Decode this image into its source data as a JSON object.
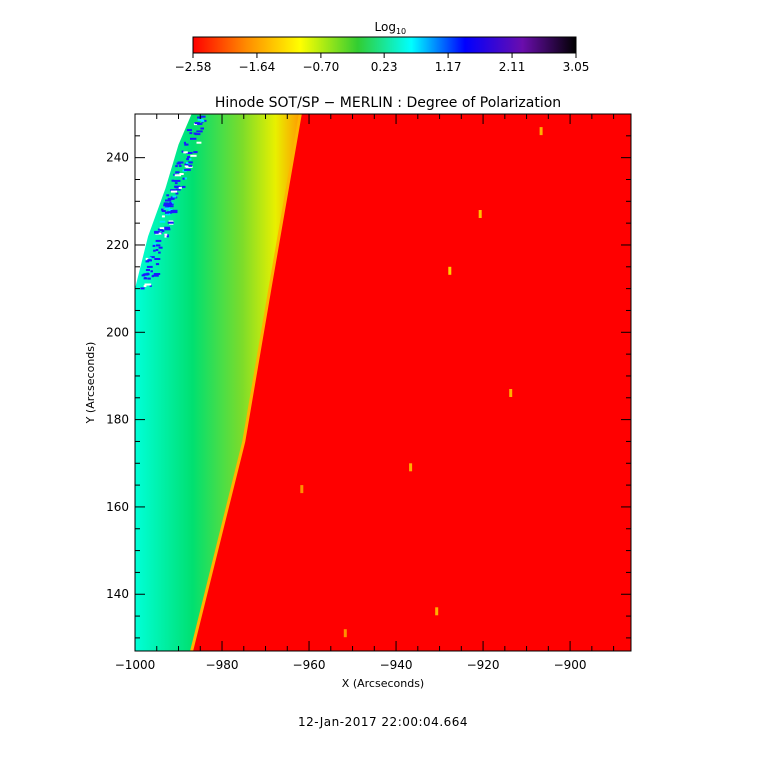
{
  "chart_data": {
    "type": "heatmap",
    "title": "Hinode SOT/SP − MERLIN : Degree of Polarization",
    "xlabel": "X (Arcseconds)",
    "ylabel": "Y (Arcseconds)",
    "xlim": [
      -1000,
      -886
    ],
    "ylim": [
      127,
      250
    ],
    "x_ticks": [
      -1000,
      -980,
      -960,
      -940,
      -920,
      -900
    ],
    "x_tick_labels": [
      "−1000",
      "−980",
      "−960",
      "−940",
      "−920",
      "−900"
    ],
    "y_ticks": [
      140,
      160,
      180,
      200,
      220,
      240
    ],
    "y_tick_labels": [
      "140",
      "160",
      "180",
      "200",
      "220",
      "240"
    ],
    "colorbar": {
      "label": "Log",
      "label_subscript": "10",
      "range": [
        -2.58,
        3.05
      ],
      "ticks": [
        -2.58,
        -1.64,
        -0.7,
        0.23,
        1.17,
        2.11,
        3.05
      ],
      "tick_labels": [
        "−2.58",
        "−1.64",
        "−0.70",
        "0.23",
        "1.17",
        "2.11",
        "3.05"
      ],
      "colors": [
        "#ff0000",
        "#ff8c00",
        "#ffff00",
        "#32cd32",
        "#00ffff",
        "#0000ff",
        "#6a0dad",
        "#000000"
      ]
    },
    "limb_edge": {
      "description_values": [
        [
          -987,
          127
        ],
        [
          -975,
          175
        ],
        [
          -962,
          250
        ]
      ],
      "x_values": [
        -987,
        -980,
        -975,
        -969,
        -962
      ],
      "y_values": [
        127,
        155,
        175,
        210,
        250
      ]
    },
    "disk_value": -2.58,
    "off_limb_values": [
      -1.2,
      -0.3,
      0.5,
      1.3
    ]
  },
  "footer": {
    "timestamp": "12-Jan-2017 22:00:04.664"
  }
}
